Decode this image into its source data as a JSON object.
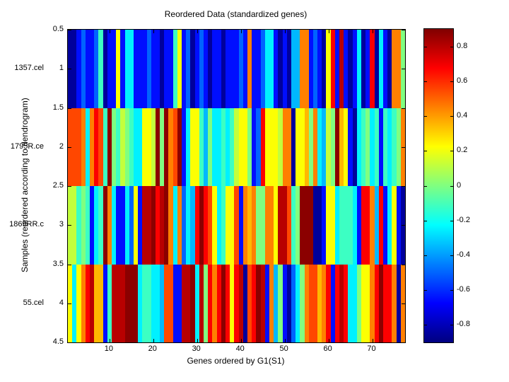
{
  "figure": {
    "background_color": "#ffffff",
    "title": "Reordered Data (standardized genes)"
  },
  "chart_data": {
    "type": "heatmap",
    "title": "Reordered Data (standardized genes)",
    "xlabel": "Genes ordered by G1(S1)",
    "ylabel": "Samples (reordered according to dendrogram)",
    "row_labels": [
      "1357.cel",
      "1795R.ce",
      "1869RR.c",
      "55.cel"
    ],
    "x_ticks": [
      10,
      20,
      30,
      40,
      50,
      60,
      70
    ],
    "y_ticks": [
      0.5,
      1,
      1.5,
      2,
      2.5,
      3,
      3.5,
      4,
      4.5
    ],
    "n_genes": 77,
    "n_samples": 4,
    "colormap": "jet",
    "clim": [
      -0.9,
      0.9
    ],
    "colorbar_ticks": [
      0.8,
      0.6,
      0.4,
      0.2,
      0,
      -0.2,
      -0.4,
      -0.6,
      -0.8
    ],
    "grid": false,
    "matrix": [
      [
        -0.85,
        -0.85,
        -0.65,
        -0.5,
        -0.65,
        -0.65,
        -0.5,
        -0.12,
        -0.85,
        -0.65,
        -0.65,
        0.22,
        -0.65,
        -0.25,
        -0.25,
        -0.65,
        -0.65,
        -0.65,
        -0.5,
        -0.65,
        -0.65,
        -0.85,
        -0.65,
        -0.65,
        -0.12,
        0.22,
        -0.65,
        -0.5,
        -0.85,
        -0.65,
        -0.5,
        -0.65,
        -0.85,
        -0.65,
        -0.65,
        -0.85,
        -0.65,
        -0.65,
        -0.65,
        -0.5,
        -0.65,
        0.45,
        -0.65,
        -0.65,
        -0.5,
        -0.25,
        -0.25,
        -0.65,
        -0.85,
        -0.65,
        -0.85,
        -0.35,
        -0.35,
        0.45,
        0.45,
        -0.65,
        -0.5,
        -0.65,
        -0.85,
        0.22,
        0.68,
        -0.65,
        0.8,
        -0.65,
        -0.85,
        -0.65,
        -0.25,
        -0.85,
        -0.65,
        0.68,
        -0.85,
        -0.25,
        -0.65,
        -0.85,
        0.45,
        0.45,
        0.0
      ],
      [
        0.55,
        0.55,
        0.55,
        0.45,
        -0.25,
        0.45,
        0.68,
        0.55,
        -0.12,
        0.88,
        0.0,
        -0.12,
        0.12,
        0.0,
        -0.12,
        -0.25,
        -0.25,
        0.22,
        0.22,
        0.12,
        0.88,
        0.0,
        0.88,
        0.45,
        0.55,
        0.88,
        -0.65,
        -0.25,
        0.22,
        0.22,
        -0.12,
        -0.35,
        0.0,
        -0.25,
        -0.25,
        -0.12,
        -0.25,
        -0.12,
        0.12,
        0.22,
        0.22,
        0.0,
        -0.65,
        -0.5,
        0.68,
        0.22,
        0.22,
        0.22,
        0.12,
        0.45,
        0.45,
        -0.85,
        0.22,
        0.22,
        0.35,
        0.0,
        0.45,
        -0.25,
        -0.35,
        0.12,
        0.0,
        0.88,
        0.35,
        0.22,
        -0.65,
        -0.85,
        -0.25,
        -0.12,
        0.0,
        -0.25,
        -0.12,
        -0.65,
        -0.12,
        -0.25,
        -0.12,
        0.0,
        0.45
      ],
      [
        0.12,
        0.12,
        -0.12,
        0.0,
        -0.12,
        -0.65,
        -0.25,
        -0.12,
        0.88,
        0.45,
        -0.25,
        -0.65,
        -0.65,
        -0.25,
        -0.5,
        0.22,
        -0.65,
        0.8,
        0.8,
        0.88,
        0.68,
        0.8,
        0.88,
        0.45,
        -0.25,
        0.45,
        -0.5,
        -0.25,
        -0.35,
        0.68,
        0.88,
        0.68,
        0.55,
        0.22,
        -0.25,
        -0.12,
        0.22,
        0.22,
        0.55,
        -0.65,
        0.45,
        0.35,
        0.45,
        0.0,
        0.0,
        0.45,
        0.45,
        0.22,
        0.8,
        0.8,
        0.55,
        -0.12,
        0.0,
        0.88,
        0.88,
        0.88,
        -0.85,
        -0.85,
        -0.65,
        0.22,
        0.22,
        -0.25,
        -0.12,
        -0.12,
        -0.12,
        -0.25,
        -0.65,
        0.68,
        0.68,
        0.45,
        -0.35,
        0.68,
        -0.65,
        -0.25,
        0.22,
        -0.65,
        -0.85
      ],
      [
        0.22,
        -0.25,
        0.22,
        0.45,
        0.68,
        0.8,
        0.35,
        0.35,
        -0.65,
        -0.12,
        0.8,
        0.8,
        0.8,
        0.88,
        0.88,
        0.88,
        -0.25,
        -0.12,
        -0.12,
        -0.25,
        -0.25,
        -0.35,
        0.55,
        0.55,
        -0.65,
        -0.65,
        0.8,
        0.8,
        0.88,
        -0.25,
        0.8,
        0.0,
        0.68,
        0.45,
        0.68,
        0.88,
        0.68,
        0.22,
        0.68,
        0.8,
        -0.85,
        0.55,
        0.68,
        0.88,
        0.8,
        -0.65,
        0.45,
        -0.35,
        0.0,
        -0.65,
        -0.85,
        -0.5,
        -0.25,
        0.0,
        0.45,
        0.55,
        0.55,
        0.35,
        0.45,
        0.68,
        -0.65,
        0.68,
        0.8,
        0.68,
        -0.25,
        -0.25,
        0.0,
        0.22,
        0.22,
        0.45,
        0.68,
        0.88,
        0.68,
        0.68,
        0.45,
        -0.85,
        0.45
      ]
    ]
  }
}
